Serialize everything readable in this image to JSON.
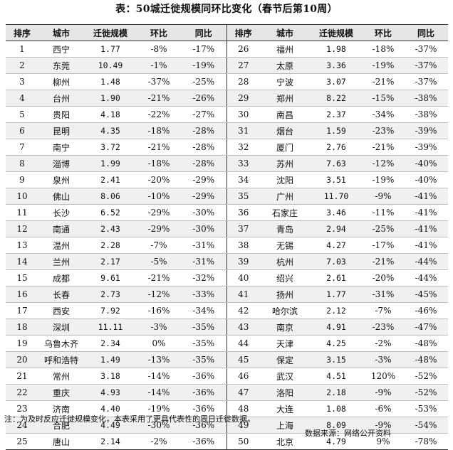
{
  "title": "表：50城迁徙规模同环比变化（春节后第10周）",
  "headers": {
    "rank": "排序",
    "city": "城市",
    "scale": "迁徙规模",
    "mom": "环比",
    "yoy": "同比"
  },
  "rows_left": [
    {
      "rank": "1",
      "city": "西宁",
      "scale": "1.77",
      "mom": "-8%",
      "yoy": "-17%"
    },
    {
      "rank": "2",
      "city": "东莞",
      "scale": "10.49",
      "mom": "-1%",
      "yoy": "-19%"
    },
    {
      "rank": "3",
      "city": "柳州",
      "scale": "1.48",
      "mom": "-37%",
      "yoy": "-25%"
    },
    {
      "rank": "4",
      "city": "台州",
      "scale": "1.90",
      "mom": "-21%",
      "yoy": "-26%"
    },
    {
      "rank": "5",
      "city": "贵阳",
      "scale": "4.18",
      "mom": "-22%",
      "yoy": "-27%"
    },
    {
      "rank": "6",
      "city": "昆明",
      "scale": "4.35",
      "mom": "-18%",
      "yoy": "-28%"
    },
    {
      "rank": "7",
      "city": "南宁",
      "scale": "3.72",
      "mom": "-21%",
      "yoy": "-28%"
    },
    {
      "rank": "8",
      "city": "淄博",
      "scale": "1.99",
      "mom": "-18%",
      "yoy": "-28%"
    },
    {
      "rank": "9",
      "city": "泉州",
      "scale": "2.41",
      "mom": "-20%",
      "yoy": "-29%"
    },
    {
      "rank": "10",
      "city": "佛山",
      "scale": "8.06",
      "mom": "-10%",
      "yoy": "-29%"
    },
    {
      "rank": "11",
      "city": "长沙",
      "scale": "6.52",
      "mom": "-29%",
      "yoy": "-30%"
    },
    {
      "rank": "12",
      "city": "南通",
      "scale": "2.43",
      "mom": "-29%",
      "yoy": "-30%"
    },
    {
      "rank": "13",
      "city": "温州",
      "scale": "2.28",
      "mom": "-7%",
      "yoy": "-31%"
    },
    {
      "rank": "14",
      "city": "兰州",
      "scale": "2.17",
      "mom": "-5%",
      "yoy": "-31%"
    },
    {
      "rank": "15",
      "city": "成都",
      "scale": "9.61",
      "mom": "-21%",
      "yoy": "-32%"
    },
    {
      "rank": "16",
      "city": "长春",
      "scale": "2.73",
      "mom": "-12%",
      "yoy": "-33%"
    },
    {
      "rank": "17",
      "city": "西安",
      "scale": "7.92",
      "mom": "-16%",
      "yoy": "-34%"
    },
    {
      "rank": "18",
      "city": "深圳",
      "scale": "11.11",
      "mom": "-3%",
      "yoy": "-35%"
    },
    {
      "rank": "19",
      "city": "乌鲁木齐",
      "scale": "2.34",
      "mom": "0%",
      "yoy": "-35%"
    },
    {
      "rank": "20",
      "city": "呼和浩特",
      "scale": "1.49",
      "mom": "-13%",
      "yoy": "-35%"
    },
    {
      "rank": "21",
      "city": "常州",
      "scale": "3.18",
      "mom": "-14%",
      "yoy": "-36%"
    },
    {
      "rank": "22",
      "city": "重庆",
      "scale": "4.93",
      "mom": "-14%",
      "yoy": "-36%"
    },
    {
      "rank": "23",
      "city": "济南",
      "scale": "4.40",
      "mom": "-19%",
      "yoy": "-36%"
    },
    {
      "rank": "24",
      "city": "合肥",
      "scale": "4.49",
      "mom": "-30%",
      "yoy": "-36%"
    },
    {
      "rank": "25",
      "city": "唐山",
      "scale": "2.14",
      "mom": "-2%",
      "yoy": "-36%"
    }
  ],
  "rows_right": [
    {
      "rank": "26",
      "city": "福州",
      "scale": "1.98",
      "mom": "-18%",
      "yoy": "-37%"
    },
    {
      "rank": "27",
      "city": "太原",
      "scale": "3.36",
      "mom": "-19%",
      "yoy": "-37%"
    },
    {
      "rank": "28",
      "city": "宁波",
      "scale": "3.07",
      "mom": "-21%",
      "yoy": "-37%"
    },
    {
      "rank": "29",
      "city": "郑州",
      "scale": "8.22",
      "mom": "-15%",
      "yoy": "-38%"
    },
    {
      "rank": "30",
      "city": "南昌",
      "scale": "2.37",
      "mom": "-34%",
      "yoy": "-38%"
    },
    {
      "rank": "31",
      "city": "烟台",
      "scale": "1.59",
      "mom": "-23%",
      "yoy": "-39%"
    },
    {
      "rank": "32",
      "city": "厦门",
      "scale": "2.76",
      "mom": "-21%",
      "yoy": "-39%"
    },
    {
      "rank": "33",
      "city": "苏州",
      "scale": "7.63",
      "mom": "-12%",
      "yoy": "-40%"
    },
    {
      "rank": "34",
      "city": "沈阳",
      "scale": "3.51",
      "mom": "-19%",
      "yoy": "-40%"
    },
    {
      "rank": "35",
      "city": "广州",
      "scale": "11.70",
      "mom": "-9%",
      "yoy": "-41%"
    },
    {
      "rank": "36",
      "city": "石家庄",
      "scale": "3.46",
      "mom": "-11%",
      "yoy": "-41%"
    },
    {
      "rank": "37",
      "city": "青岛",
      "scale": "2.94",
      "mom": "-25%",
      "yoy": "-41%"
    },
    {
      "rank": "38",
      "city": "无锡",
      "scale": "4.27",
      "mom": "-17%",
      "yoy": "-41%"
    },
    {
      "rank": "39",
      "city": "杭州",
      "scale": "7.03",
      "mom": "-21%",
      "yoy": "-44%"
    },
    {
      "rank": "40",
      "city": "绍兴",
      "scale": "2.61",
      "mom": "-20%",
      "yoy": "-44%"
    },
    {
      "rank": "41",
      "city": "扬州",
      "scale": "1.77",
      "mom": "-31%",
      "yoy": "-45%"
    },
    {
      "rank": "42",
      "city": "哈尔滨",
      "scale": "2.12",
      "mom": "-7%",
      "yoy": "-46%"
    },
    {
      "rank": "43",
      "city": "南京",
      "scale": "4.91",
      "mom": "-23%",
      "yoy": "-47%"
    },
    {
      "rank": "44",
      "city": "天津",
      "scale": "4.25",
      "mom": "-2%",
      "yoy": "-48%"
    },
    {
      "rank": "45",
      "city": "保定",
      "scale": "3.15",
      "mom": "-3%",
      "yoy": "-48%"
    },
    {
      "rank": "46",
      "city": "武汉",
      "scale": "4.51",
      "mom": "120%",
      "yoy": "-52%"
    },
    {
      "rank": "47",
      "city": "洛阳",
      "scale": "2.18",
      "mom": "-9%",
      "yoy": "-52%"
    },
    {
      "rank": "48",
      "city": "大连",
      "scale": "1.08",
      "mom": "-6%",
      "yoy": "-53%"
    },
    {
      "rank": "49",
      "city": "上海",
      "scale": "8.09",
      "mom": "-9%",
      "yoy": "-54%"
    },
    {
      "rank": "50",
      "city": "北京",
      "scale": "4.79",
      "mom": "9%",
      "yoy": "-78%"
    }
  ],
  "note": "注：为及时反应迁徙规模变化，本表采用了更具代表性的周日迁徙数据。",
  "source": "数据来源：网络公开资料"
}
